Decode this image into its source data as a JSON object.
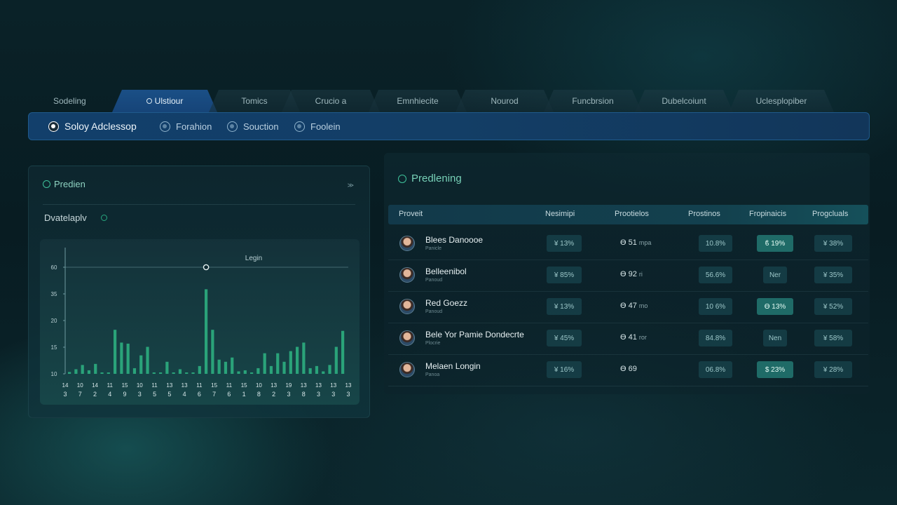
{
  "tabs": [
    {
      "label": "Sodeling",
      "active": false
    },
    {
      "label": "Ulstiour",
      "active": true
    },
    {
      "label": "Tomics",
      "active": false
    },
    {
      "label": "Crucio a",
      "active": false
    },
    {
      "label": "Emnhiecite",
      "active": false
    },
    {
      "label": "Nourod",
      "active": false
    },
    {
      "label": "Funcbrsion",
      "active": false
    },
    {
      "label": "Dubelcoiunt",
      "active": false
    },
    {
      "label": "Uclesplopiber",
      "active": false
    }
  ],
  "subbar": {
    "primary": "Soloy Adclessop",
    "items": [
      "Forahion",
      "Souction",
      "Foolein"
    ]
  },
  "left_panel": {
    "title": "Predien",
    "more": "≫",
    "subtitle": "Dvatelaplv",
    "chart_legend": "Legin"
  },
  "chart_data": {
    "type": "bar",
    "ytick_labels": [
      "10",
      "15",
      "20",
      "35",
      "60"
    ],
    "x_top_labels": [
      "14",
      "10",
      "14",
      "11",
      "15",
      "10",
      "11",
      "13",
      "13",
      "11",
      "15",
      "11",
      "15",
      "10",
      "13",
      "19",
      "13",
      "13",
      "13",
      "13"
    ],
    "x_bottom_labels": [
      "3",
      "7",
      "2",
      "4",
      "9",
      "3",
      "5",
      "5",
      "4",
      "6",
      "7",
      "6",
      "1",
      "8",
      "2",
      "3",
      "8",
      "3",
      "3",
      "3"
    ],
    "values": [
      10.2,
      11.5,
      13.5,
      11,
      14,
      10,
      10,
      30,
      24,
      23.5,
      12,
      18,
      22,
      10,
      10,
      15,
      10,
      11.5,
      10,
      10,
      13,
      49,
      30,
      16,
      15,
      17,
      10.5,
      11,
      10,
      12,
      19,
      13,
      19,
      15,
      20,
      22,
      24,
      12,
      13,
      10.5,
      13.5,
      22,
      29.5
    ],
    "marker_label": "60",
    "ylim": [
      10,
      60
    ]
  },
  "right_panel": {
    "title": "Predlening",
    "columns": [
      "Proveit",
      "Nesimipi",
      "Prootielos",
      "Prostinos",
      "Fropinaicis",
      "Progcluals"
    ],
    "rows": [
      {
        "name": "Blees Danoooe",
        "sub": "Panicle",
        "c1": "¥ 13%",
        "c2": "ϴ 51",
        "c2u": "mpa",
        "c3": "10.8%",
        "c4": "ϐ 19%",
        "c4hl": true,
        "c5": "¥ 38%"
      },
      {
        "name": "Belleenibol",
        "sub": "Panoud",
        "c1": "¥ 85%",
        "c2": "ϴ 92",
        "c2u": "ri",
        "c3": "56.6%",
        "c4": "Ner",
        "c4hl": false,
        "c5": "¥ 35%"
      },
      {
        "name": "Red Goezz",
        "sub": "Panoud",
        "c1": "¥ 13%",
        "c2": "ϴ 47",
        "c2u": "mo",
        "c3": "10 6%",
        "c4": "ϴ 13%",
        "c4hl": true,
        "c5": "¥ 52%"
      },
      {
        "name": "Bele Yor Pamie Dondecrte",
        "sub": "Plocrie",
        "c1": "¥ 45%",
        "c2": "ϴ 41",
        "c2u": "ror",
        "c3": "84.8%",
        "c4": "Nen",
        "c4hl": false,
        "c5": "¥ 58%"
      },
      {
        "name": "Melaen Longin",
        "sub": "Panoa",
        "c1": "¥ 16%",
        "c2": "ϴ 69",
        "c2u": "",
        "c3": "06.8%",
        "c4": "$ 23%",
        "c4hl": true,
        "c5": "¥ 28%"
      }
    ]
  },
  "colors": {
    "accent": "#2fbf8f",
    "tab_active": "#1a4f86",
    "bar": "#2cae7f"
  }
}
